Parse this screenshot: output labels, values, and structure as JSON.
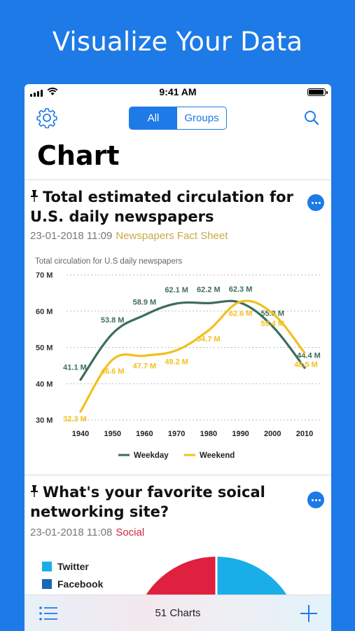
{
  "headline": "Visualize Your Data",
  "status": {
    "time": "9:41 AM"
  },
  "icons": {
    "gear": "gear-icon",
    "search": "search-icon",
    "pin": "pin-icon",
    "more": "more-icon",
    "list": "list-icon",
    "plus": "plus-icon"
  },
  "nav": {
    "segments": [
      "All",
      "Groups"
    ],
    "selected": "All"
  },
  "page_title": "Chart",
  "cards": [
    {
      "title": "Total estimated circulation for U.S. daily newspapers",
      "date": "23-01-2018 11:09",
      "category": "Newspapers Fact Sheet",
      "category_color": "#c9a84a"
    },
    {
      "title": "What's your favorite soical networking site?",
      "date": "23-01-2018 11:08",
      "category": "Social",
      "category_color": "#d0263a"
    }
  ],
  "chart_data": [
    {
      "type": "line",
      "title": "Total circulation for U.S daily newspapers",
      "x": [
        1940,
        1950,
        1960,
        1970,
        1980,
        1990,
        2000,
        2010
      ],
      "ylim": [
        30,
        70
      ],
      "yticks": [
        "30 M",
        "40 M",
        "50 M",
        "60 M",
        "70 M"
      ],
      "grid": true,
      "legend_placement": "bottom",
      "series": [
        {
          "name": "Weekday",
          "color": "#3d6e5a",
          "values": [
            41.1,
            53.8,
            58.9,
            62.1,
            62.2,
            62.3,
            55.8,
            44.4
          ],
          "labels": [
            "41.1 M",
            "53.8 M",
            "58.9 M",
            "62.1 M",
            "62.2 M",
            "62.3 M",
            "55.8 M",
            "44.4 M"
          ]
        },
        {
          "name": "Weekend",
          "color": "#f2c01e",
          "values": [
            32.3,
            46.6,
            47.7,
            49.2,
            54.7,
            62.6,
            59.4,
            48.5
          ],
          "labels": [
            "32.3 M",
            "46.6 M",
            "47.7 M",
            "49.2 M",
            "54.7 M",
            "62.6 M",
            "59.4 M",
            "48.5 M"
          ]
        }
      ]
    },
    {
      "type": "pie",
      "legend_placement": "top-left",
      "legend": [
        {
          "name": "Twitter",
          "color": "#19aee8"
        },
        {
          "name": "Facebook",
          "color": "#1769b3"
        }
      ],
      "colors": [
        "#19aee8",
        "#e0203f"
      ]
    }
  ],
  "tabbar": {
    "count_label": "51 Charts"
  }
}
